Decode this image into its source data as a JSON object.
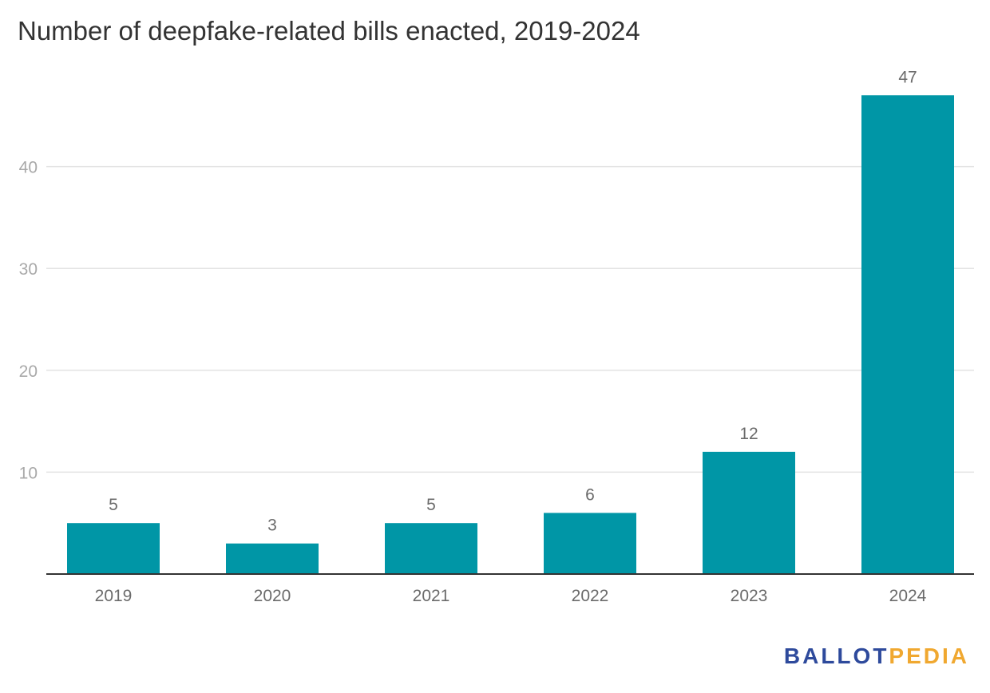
{
  "chart_data": {
    "type": "bar",
    "title": "Number of deepfake-related bills enacted, 2019-2024",
    "categories": [
      "2019",
      "2020",
      "2021",
      "2022",
      "2023",
      "2024"
    ],
    "values": [
      5,
      3,
      5,
      6,
      12,
      47
    ],
    "data_labels": [
      "5",
      "3",
      "5",
      "6",
      "12",
      "47"
    ],
    "yticks": [
      10,
      20,
      30,
      40
    ],
    "ylim": [
      0,
      47
    ],
    "xlabel": "",
    "ylabel": "",
    "grid": true,
    "bar_color": "#0096a6"
  },
  "branding": {
    "logo_part1": "BALLOT",
    "logo_part2": "PEDIA",
    "color1": "#2e4a9c",
    "color2": "#f0a830"
  }
}
